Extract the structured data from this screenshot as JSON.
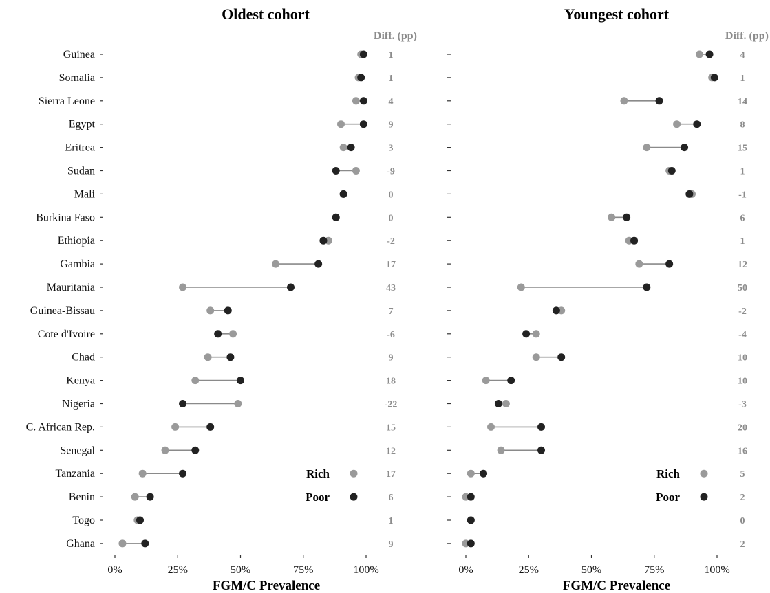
{
  "chart_data": {
    "type": "dumbbell",
    "countries": [
      "Guinea",
      "Somalia",
      "Sierra Leone",
      "Egypt",
      "Eritrea",
      "Sudan",
      "Mali",
      "Burkina Faso",
      "Ethiopia",
      "Gambia",
      "Mauritania",
      "Guinea-Bissau",
      "Cote d'Ivoire",
      "Chad",
      "Kenya",
      "Nigeria",
      "C. African Rep.",
      "Senegal",
      "Tanzania",
      "Benin",
      "Togo",
      "Ghana"
    ],
    "xlabel": "FGM/C Prevalence",
    "xticks": [
      "0%",
      "25%",
      "50%",
      "75%",
      "100%"
    ],
    "xlim": [
      0,
      100
    ],
    "diff_header": "Diff. (pp)",
    "legend": {
      "rich": "Rich",
      "poor": "Poor"
    },
    "colors": {
      "rich": "#9a9a9a",
      "poor": "#222222",
      "segment": "#8a8a8a"
    },
    "panels": [
      {
        "title": "Oldest cohort",
        "rich": [
          98,
          97,
          96,
          90,
          91,
          96,
          91,
          88,
          85,
          64,
          27,
          38,
          47,
          37,
          32,
          49,
          24,
          20,
          11,
          8,
          9,
          3
        ],
        "poor": [
          99,
          98,
          99,
          99,
          94,
          88,
          91,
          88,
          83,
          81,
          70,
          45,
          41,
          46,
          50,
          27,
          38,
          32,
          27,
          14,
          10,
          12
        ],
        "diff": [
          "1",
          "1",
          "4",
          "9",
          "3",
          "-9",
          "0",
          "0",
          "-2",
          "17",
          "43",
          "7",
          "-6",
          "9",
          "18",
          "-22",
          "15",
          "12",
          "17",
          "6",
          "1",
          "9"
        ]
      },
      {
        "title": "Youngest cohort",
        "rich": [
          93,
          98,
          63,
          84,
          72,
          81,
          90,
          58,
          65,
          69,
          22,
          38,
          28,
          28,
          8,
          16,
          10,
          14,
          2,
          0,
          2,
          0
        ],
        "poor": [
          97,
          99,
          77,
          92,
          87,
          82,
          89,
          64,
          67,
          81,
          72,
          36,
          24,
          38,
          18,
          13,
          30,
          30,
          7,
          2,
          2,
          2
        ],
        "diff": [
          "4",
          "1",
          "14",
          "8",
          "15",
          "1",
          "-1",
          "6",
          "1",
          "12",
          "50",
          "-2",
          "-4",
          "10",
          "10",
          "-3",
          "20",
          "16",
          "5",
          "2",
          "0",
          "2"
        ]
      }
    ]
  }
}
